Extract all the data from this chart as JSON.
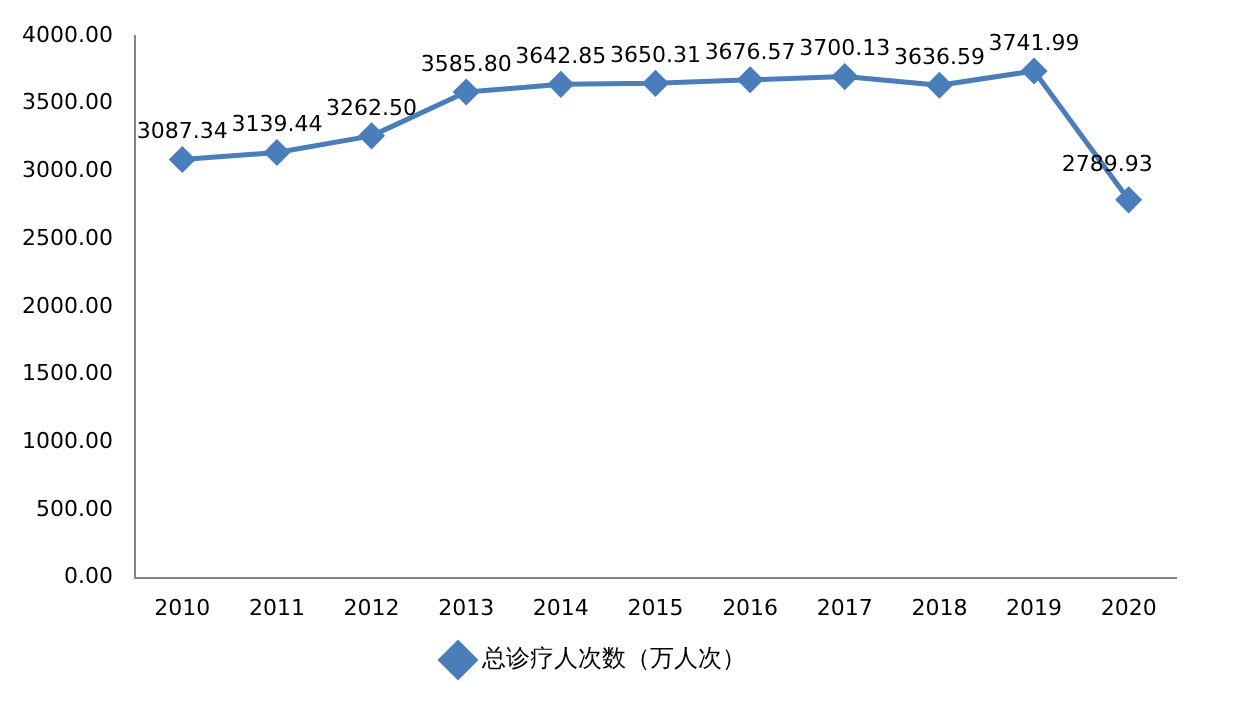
{
  "chart_data": {
    "type": "line",
    "categories": [
      "2010",
      "2011",
      "2012",
      "2013",
      "2014",
      "2015",
      "2016",
      "2017",
      "2018",
      "2019",
      "2020"
    ],
    "series": [
      {
        "name": "总诊疗人次数（万人次）",
        "color": "#4a7ebb",
        "values": [
          3087.34,
          3139.44,
          3262.5,
          3585.8,
          3642.85,
          3650.31,
          3676.57,
          3700.13,
          3636.59,
          3741.99,
          2789.93
        ],
        "value_labels": [
          "3087.34",
          "3139.44",
          "3262.50",
          "3585.80",
          "3642.85",
          "3650.31",
          "3676.57",
          "3700.13",
          "3636.59",
          "3741.99",
          "2789.93"
        ]
      }
    ],
    "ylim": [
      0,
      4000
    ],
    "yticks": [
      {
        "value": 0,
        "label": "0.00"
      },
      {
        "value": 500,
        "label": "500.00"
      },
      {
        "value": 1000,
        "label": "1000.00"
      },
      {
        "value": 1500,
        "label": "1500.00"
      },
      {
        "value": 2000,
        "label": "2000.00"
      },
      {
        "value": 2500,
        "label": "2500.00"
      },
      {
        "value": 3000,
        "label": "3000.00"
      },
      {
        "value": 3500,
        "label": "3500.00"
      },
      {
        "value": 4000,
        "label": "4000.00"
      }
    ],
    "legend": "bottom",
    "marker": "diamond",
    "line_style": "solid"
  }
}
